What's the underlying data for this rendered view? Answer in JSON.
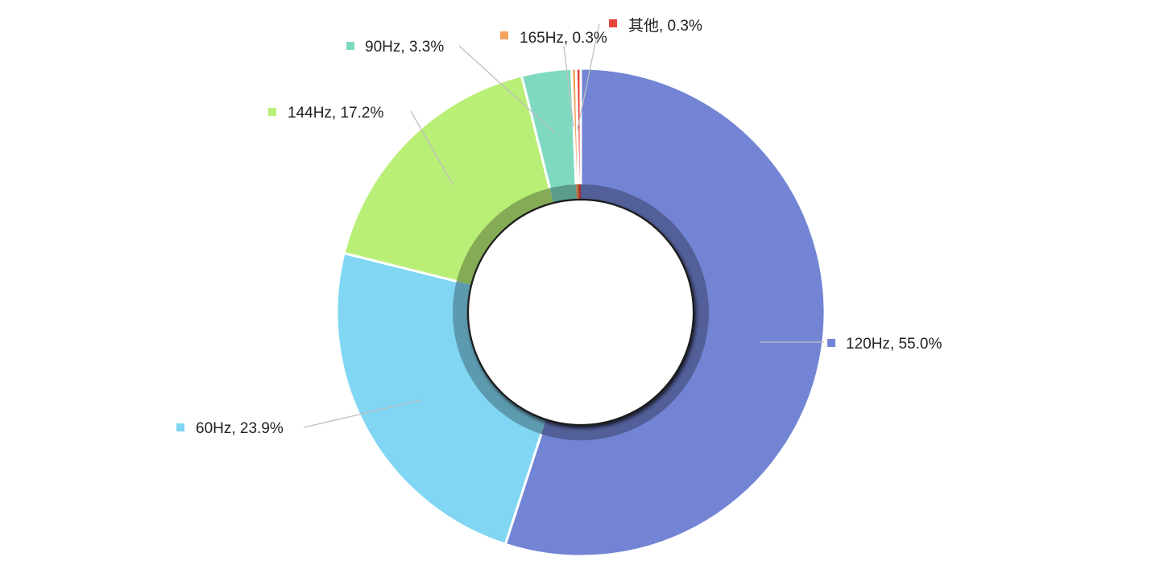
{
  "chart_data": {
    "type": "pie",
    "variant": "donut",
    "title": "",
    "legend": "none",
    "slices": [
      {
        "label": "120Hz",
        "value": 55.0,
        "display": "120Hz, 55.0%",
        "color": "#7284D3"
      },
      {
        "label": "60Hz",
        "value": 23.9,
        "display": "60Hz, 23.9%",
        "color": "#80D6F3"
      },
      {
        "label": "144Hz",
        "value": 17.2,
        "display": "144Hz, 17.2%",
        "color": "#B9EE77"
      },
      {
        "label": "90Hz",
        "value": 3.3,
        "display": "90Hz, 3.3%",
        "color": "#7FD9C0"
      },
      {
        "label": "165Hz",
        "value": 0.3,
        "display": "165Hz, 0.3%",
        "color": "#F2A35E"
      },
      {
        "label": "其他",
        "value": 0.3,
        "display": "其他, 0.3%",
        "color": "#E8453C"
      }
    ]
  }
}
